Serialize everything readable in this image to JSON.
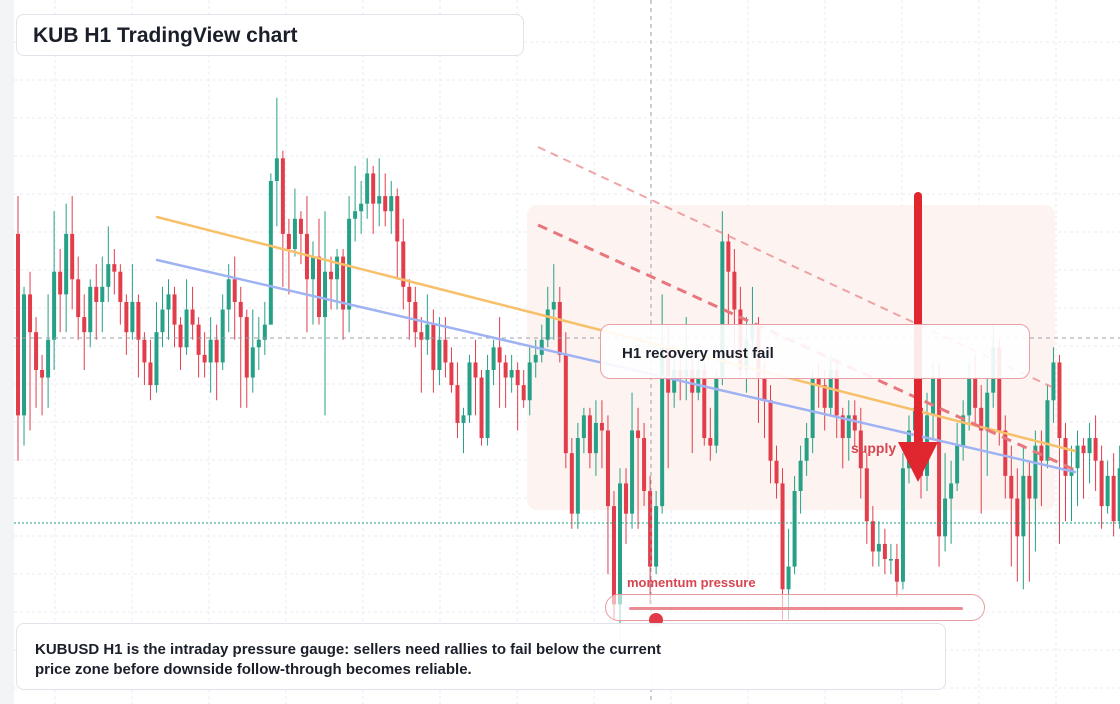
{
  "title": "KUB H1 TradingView chart",
  "callout": {
    "text": "H1 recovery must fail"
  },
  "caption": {
    "text": "KUBUSD H1 is the intraday pressure gauge: sellers need rallies to fail below the current price zone before downside follow-through becomes reliable."
  },
  "supply_label": "supply",
  "momentum": {
    "label": "momentum pressure",
    "level": 0.08
  },
  "colors": {
    "up": "#26a086",
    "down": "#e23d4b",
    "trend_orange": "#f7c06b",
    "trend_blue": "#9fb3f2",
    "resistance_dashed": "#e8767d",
    "arrow": "#e0262f",
    "supply_zone": "#fdf2ef",
    "grid": "#e8ebf0",
    "crosshair": "#9aa1ab",
    "price_line": "#1f9e84"
  },
  "chart_data": {
    "type": "candlestick",
    "timeframe": "H1",
    "symbol": "KUBUSD",
    "candles": [
      [
        1.69,
        1.45,
        1.74,
        1.39
      ],
      [
        1.45,
        1.61,
        1.62,
        1.41
      ],
      [
        1.61,
        1.56,
        1.64,
        1.43
      ],
      [
        1.56,
        1.51,
        1.58,
        1.46
      ],
      [
        1.51,
        1.5,
        1.53,
        1.45
      ],
      [
        1.5,
        1.55,
        1.61,
        1.46
      ],
      [
        1.55,
        1.64,
        1.72,
        1.51
      ],
      [
        1.64,
        1.61,
        1.67,
        1.56
      ],
      [
        1.61,
        1.69,
        1.73,
        1.56
      ],
      [
        1.69,
        1.63,
        1.74,
        1.59
      ],
      [
        1.63,
        1.58,
        1.66,
        1.55
      ],
      [
        1.58,
        1.56,
        1.61,
        1.51
      ],
      [
        1.56,
        1.62,
        1.63,
        1.54
      ],
      [
        1.62,
        1.6,
        1.65,
        1.55
      ],
      [
        1.6,
        1.62,
        1.66,
        1.56
      ],
      [
        1.62,
        1.65,
        1.7,
        1.6
      ],
      [
        1.65,
        1.64,
        1.67,
        1.61
      ],
      [
        1.64,
        1.6,
        1.65,
        1.57
      ],
      [
        1.6,
        1.56,
        1.61,
        1.53
      ],
      [
        1.56,
        1.6,
        1.65,
        1.55
      ],
      [
        1.6,
        1.55,
        1.61,
        1.5
      ],
      [
        1.55,
        1.52,
        1.56,
        1.49
      ],
      [
        1.52,
        1.49,
        1.55,
        1.47
      ],
      [
        1.49,
        1.56,
        1.6,
        1.48
      ],
      [
        1.56,
        1.59,
        1.62,
        1.54
      ],
      [
        1.59,
        1.61,
        1.63,
        1.55
      ],
      [
        1.61,
        1.57,
        1.62,
        1.54
      ],
      [
        1.57,
        1.54,
        1.58,
        1.51
      ],
      [
        1.54,
        1.59,
        1.63,
        1.53
      ],
      [
        1.59,
        1.57,
        1.62,
        1.55
      ],
      [
        1.57,
        1.53,
        1.58,
        1.5
      ],
      [
        1.53,
        1.52,
        1.56,
        1.5
      ],
      [
        1.52,
        1.55,
        1.58,
        1.48
      ],
      [
        1.55,
        1.52,
        1.57,
        1.47
      ],
      [
        1.52,
        1.59,
        1.61,
        1.51
      ],
      [
        1.59,
        1.63,
        1.65,
        1.56
      ],
      [
        1.63,
        1.6,
        1.66,
        1.55
      ],
      [
        1.6,
        1.58,
        1.62,
        1.46
      ],
      [
        1.58,
        1.5,
        1.59,
        1.46
      ],
      [
        1.5,
        1.54,
        1.59,
        1.48
      ],
      [
        1.54,
        1.55,
        1.58,
        1.51
      ],
      [
        1.55,
        1.57,
        1.6,
        1.53
      ],
      [
        1.57,
        1.76,
        1.77,
        1.57
      ],
      [
        1.76,
        1.79,
        1.87,
        1.7
      ],
      [
        1.79,
        1.69,
        1.8,
        1.62
      ],
      [
        1.69,
        1.67,
        1.71,
        1.61
      ],
      [
        1.67,
        1.71,
        1.75,
        1.66
      ],
      [
        1.71,
        1.69,
        1.72,
        1.65
      ],
      [
        1.69,
        1.63,
        1.74,
        1.56
      ],
      [
        1.63,
        1.66,
        1.68,
        1.57
      ],
      [
        1.66,
        1.58,
        1.71,
        1.57
      ],
      [
        1.58,
        1.64,
        1.72,
        1.45
      ],
      [
        1.64,
        1.63,
        1.66,
        1.59
      ],
      [
        1.63,
        1.66,
        1.67,
        1.59
      ],
      [
        1.66,
        1.59,
        1.67,
        1.55
      ],
      [
        1.59,
        1.71,
        1.74,
        1.56
      ],
      [
        1.71,
        1.72,
        1.78,
        1.68
      ],
      [
        1.72,
        1.73,
        1.76,
        1.69
      ],
      [
        1.73,
        1.77,
        1.79,
        1.71
      ],
      [
        1.77,
        1.73,
        1.78,
        1.69
      ],
      [
        1.73,
        1.74,
        1.79,
        1.7
      ],
      [
        1.74,
        1.72,
        1.77,
        1.7
      ],
      [
        1.72,
        1.74,
        1.76,
        1.69
      ],
      [
        1.74,
        1.68,
        1.75,
        1.63
      ],
      [
        1.68,
        1.62,
        1.71,
        1.59
      ],
      [
        1.62,
        1.6,
        1.63,
        1.55
      ],
      [
        1.6,
        1.56,
        1.62,
        1.54
      ],
      [
        1.56,
        1.55,
        1.58,
        1.48
      ],
      [
        1.55,
        1.57,
        1.61,
        1.53
      ],
      [
        1.57,
        1.51,
        1.59,
        1.48
      ],
      [
        1.51,
        1.55,
        1.58,
        1.49
      ],
      [
        1.55,
        1.52,
        1.58,
        1.5
      ],
      [
        1.52,
        1.49,
        1.54,
        1.48
      ],
      [
        1.49,
        1.44,
        1.52,
        1.42
      ],
      [
        1.44,
        1.45,
        1.46,
        1.4
      ],
      [
        1.45,
        1.52,
        1.53,
        1.44
      ],
      [
        1.52,
        1.5,
        1.55,
        1.45
      ],
      [
        1.5,
        1.42,
        1.51,
        1.41
      ],
      [
        1.42,
        1.51,
        1.53,
        1.41
      ],
      [
        1.51,
        1.54,
        1.55,
        1.49
      ],
      [
        1.54,
        1.52,
        1.58,
        1.46
      ],
      [
        1.52,
        1.5,
        1.53,
        1.46
      ],
      [
        1.5,
        1.51,
        1.53,
        1.48
      ],
      [
        1.51,
        1.49,
        1.52,
        1.43
      ],
      [
        1.49,
        1.47,
        1.51,
        1.46
      ],
      [
        1.47,
        1.52,
        1.54,
        1.45
      ],
      [
        1.52,
        1.53,
        1.55,
        1.5
      ],
      [
        1.53,
        1.55,
        1.57,
        1.52
      ],
      [
        1.55,
        1.59,
        1.62,
        1.54
      ],
      [
        1.59,
        1.6,
        1.65,
        1.55
      ],
      [
        1.6,
        1.53,
        1.62,
        1.52
      ],
      [
        1.53,
        1.4,
        1.56,
        1.38
      ],
      [
        1.4,
        1.32,
        1.42,
        1.3
      ],
      [
        1.32,
        1.42,
        1.44,
        1.3
      ],
      [
        1.42,
        1.45,
        1.46,
        1.4
      ],
      [
        1.45,
        1.4,
        1.46,
        1.38
      ],
      [
        1.4,
        1.44,
        1.47,
        1.37
      ],
      [
        1.44,
        1.43,
        1.47,
        1.38
      ],
      [
        1.43,
        1.33,
        1.45,
        1.24
      ],
      [
        1.33,
        1.2,
        1.35,
        1.18
      ],
      [
        1.2,
        1.36,
        1.38,
        1.15
      ],
      [
        1.36,
        1.32,
        1.38,
        1.28
      ],
      [
        1.32,
        1.43,
        1.48,
        1.3
      ],
      [
        1.43,
        1.42,
        1.46,
        1.3
      ],
      [
        1.42,
        1.35,
        1.44,
        1.33
      ],
      [
        1.35,
        1.25,
        1.37,
        1.2
      ],
      [
        1.25,
        1.33,
        1.35,
        1.24
      ],
      [
        1.33,
        1.54,
        1.61,
        1.32
      ],
      [
        1.54,
        1.48,
        1.57,
        1.38
      ],
      [
        1.48,
        1.51,
        1.53,
        1.46
      ],
      [
        1.51,
        1.5,
        1.53,
        1.47
      ],
      [
        1.5,
        1.51,
        1.58,
        1.47
      ],
      [
        1.51,
        1.48,
        1.53,
        1.4
      ],
      [
        1.48,
        1.51,
        1.54,
        1.47
      ],
      [
        1.51,
        1.42,
        1.52,
        1.41
      ],
      [
        1.42,
        1.41,
        1.46,
        1.39
      ],
      [
        1.41,
        1.5,
        1.51,
        1.4
      ],
      [
        1.5,
        1.68,
        1.72,
        1.49
      ],
      [
        1.68,
        1.64,
        1.69,
        1.57
      ],
      [
        1.64,
        1.59,
        1.67,
        1.53
      ],
      [
        1.59,
        1.51,
        1.62,
        1.5
      ],
      [
        1.51,
        1.55,
        1.58,
        1.48
      ],
      [
        1.55,
        1.57,
        1.62,
        1.54
      ],
      [
        1.57,
        1.5,
        1.58,
        1.44
      ],
      [
        1.5,
        1.47,
        1.52,
        1.42
      ],
      [
        1.47,
        1.39,
        1.49,
        1.36
      ],
      [
        1.39,
        1.36,
        1.41,
        1.34
      ],
      [
        1.36,
        1.22,
        1.38,
        1.18
      ],
      [
        1.22,
        1.25,
        1.3,
        1.18
      ],
      [
        1.25,
        1.35,
        1.37,
        1.24
      ],
      [
        1.35,
        1.39,
        1.41,
        1.32
      ],
      [
        1.39,
        1.42,
        1.44,
        1.37
      ],
      [
        1.42,
        1.5,
        1.51,
        1.4
      ],
      [
        1.5,
        1.49,
        1.52,
        1.46
      ],
      [
        1.49,
        1.46,
        1.51,
        1.43
      ],
      [
        1.46,
        1.51,
        1.53,
        1.45
      ],
      [
        1.51,
        1.45,
        1.52,
        1.42
      ],
      [
        1.45,
        1.42,
        1.46,
        1.38
      ],
      [
        1.42,
        1.45,
        1.47,
        1.39
      ],
      [
        1.45,
        1.43,
        1.47,
        1.41
      ],
      [
        1.43,
        1.38,
        1.46,
        1.34
      ],
      [
        1.38,
        1.31,
        1.4,
        1.28
      ],
      [
        1.31,
        1.27,
        1.33,
        1.25
      ],
      [
        1.27,
        1.28,
        1.31,
        1.25
      ],
      [
        1.28,
        1.26,
        1.3,
        1.24
      ],
      [
        1.26,
        1.26,
        1.28,
        1.24
      ],
      [
        1.26,
        1.23,
        1.28,
        1.21
      ],
      [
        1.23,
        1.38,
        1.4,
        1.22
      ],
      [
        1.38,
        1.43,
        1.45,
        1.36
      ],
      [
        1.43,
        1.46,
        1.48,
        1.4
      ],
      [
        1.46,
        1.37,
        1.48,
        1.34
      ],
      [
        1.37,
        1.45,
        1.48,
        1.35
      ],
      [
        1.45,
        1.5,
        1.52,
        1.42
      ],
      [
        1.5,
        1.29,
        1.52,
        1.25
      ],
      [
        1.29,
        1.34,
        1.4,
        1.27
      ],
      [
        1.34,
        1.36,
        1.39,
        1.28
      ],
      [
        1.36,
        1.41,
        1.44,
        1.35
      ],
      [
        1.41,
        1.45,
        1.47,
        1.39
      ],
      [
        1.45,
        1.5,
        1.52,
        1.43
      ],
      [
        1.5,
        1.46,
        1.53,
        1.44
      ],
      [
        1.46,
        1.43,
        1.49,
        1.32
      ],
      [
        1.43,
        1.48,
        1.5,
        1.37
      ],
      [
        1.48,
        1.54,
        1.57,
        1.46
      ],
      [
        1.54,
        1.43,
        1.55,
        1.41
      ],
      [
        1.43,
        1.37,
        1.45,
        1.34
      ],
      [
        1.37,
        1.34,
        1.41,
        1.25
      ],
      [
        1.34,
        1.29,
        1.38,
        1.23
      ],
      [
        1.29,
        1.37,
        1.41,
        1.22
      ],
      [
        1.37,
        1.34,
        1.39,
        1.23
      ],
      [
        1.34,
        1.41,
        1.43,
        1.27
      ],
      [
        1.41,
        1.39,
        1.43,
        1.33
      ],
      [
        1.39,
        1.47,
        1.49,
        1.38
      ],
      [
        1.47,
        1.52,
        1.54,
        1.44
      ],
      [
        1.52,
        1.42,
        1.53,
        1.28
      ],
      [
        1.42,
        1.37,
        1.44,
        1.31
      ],
      [
        1.37,
        1.38,
        1.41,
        1.31
      ],
      [
        1.38,
        1.41,
        1.43,
        1.33
      ],
      [
        1.41,
        1.4,
        1.42,
        1.34
      ],
      [
        1.4,
        1.42,
        1.44,
        1.36
      ],
      [
        1.42,
        1.39,
        1.45,
        1.35
      ],
      [
        1.39,
        1.33,
        1.41,
        1.3
      ],
      [
        1.33,
        1.37,
        1.39,
        1.32
      ],
      [
        1.37,
        1.31,
        1.4,
        1.29
      ],
      [
        1.31,
        1.38,
        1.41,
        1.3
      ],
      [
        1.38,
        1.42,
        1.47,
        1.36
      ],
      [
        1.42,
        1.43,
        1.47,
        1.37
      ],
      [
        1.43,
        1.47,
        1.48,
        1.39
      ],
      [
        1.47,
        1.43,
        1.48,
        1.39
      ],
      [
        1.43,
        1.35,
        1.44,
        1.31
      ],
      [
        1.35,
        1.28,
        1.38,
        1.25
      ],
      [
        1.28,
        1.36,
        1.39,
        1.27
      ]
    ]
  }
}
